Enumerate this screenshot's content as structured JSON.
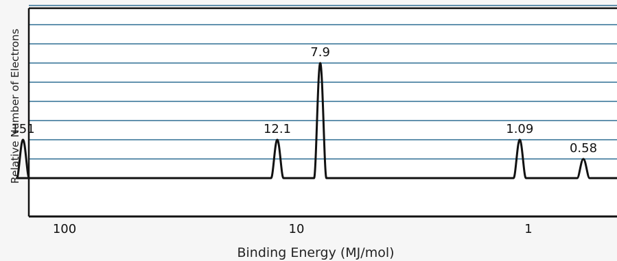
{
  "chart_data": {
    "type": "line",
    "title": "",
    "xlabel": "Binding Energy (MJ/mol)",
    "ylabel": "Relative Number of Electrons",
    "x_scale": "log",
    "x_direction": "reversed",
    "x_ticks": [
      {
        "value": 100,
        "label": "100"
      },
      {
        "value": 10,
        "label": "10"
      },
      {
        "value": 1,
        "label": "1"
      }
    ],
    "grid": true,
    "peaks": [
      {
        "energy": 151,
        "label": "151",
        "relative_electrons": 2
      },
      {
        "energy": 12.1,
        "label": "12.1",
        "relative_electrons": 2
      },
      {
        "energy": 7.9,
        "label": "7.9",
        "relative_electrons": 6
      },
      {
        "energy": 1.09,
        "label": "1.09",
        "relative_electrons": 2
      },
      {
        "energy": 0.58,
        "label": "0.58",
        "relative_electrons": 1
      }
    ],
    "ylim": [
      0,
      9
    ],
    "colors": {
      "grid": "#2e6f94",
      "trace": "#111111",
      "axis": "#111111",
      "background": "#ffffff"
    }
  }
}
